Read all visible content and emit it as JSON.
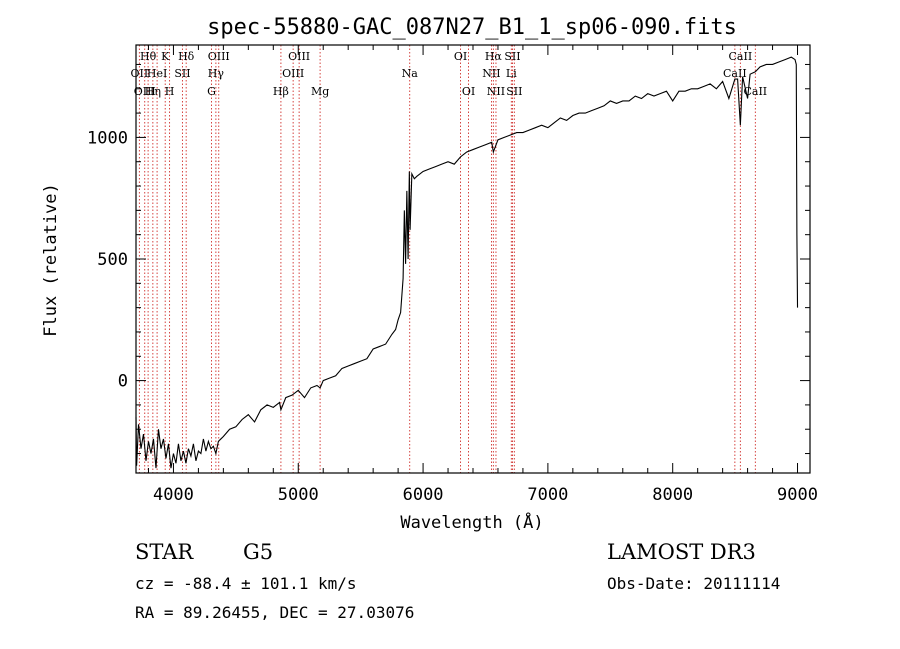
{
  "chart_data": {
    "type": "line",
    "title": "spec-55880-GAC_087N27_B1_1_sp06-090.fits",
    "xlabel": "Wavelength (Å)",
    "ylabel": "Flux (relative)",
    "xlim": [
      3700,
      9100
    ],
    "ylim": [
      -380,
      1380
    ],
    "xticks": [
      4000,
      5000,
      6000,
      7000,
      8000,
      9000
    ],
    "yticks": [
      0,
      500,
      1000
    ],
    "x_minor_step": 200,
    "y_minor_step": 100,
    "series": [
      {
        "name": "flux",
        "color": "#000000",
        "x": [
          3700,
          3705,
          3720,
          3740,
          3760,
          3780,
          3800,
          3820,
          3840,
          3860,
          3880,
          3900,
          3920,
          3940,
          3960,
          3980,
          4000,
          4020,
          4040,
          4060,
          4080,
          4100,
          4120,
          4140,
          4160,
          4180,
          4200,
          4220,
          4240,
          4260,
          4280,
          4300,
          4320,
          4340,
          4360,
          4380,
          4400,
          4450,
          4500,
          4550,
          4600,
          4650,
          4700,
          4750,
          4800,
          4850,
          4861,
          4900,
          4950,
          5000,
          5050,
          5100,
          5150,
          5175,
          5200,
          5250,
          5300,
          5350,
          5400,
          5450,
          5500,
          5550,
          5600,
          5650,
          5700,
          5750,
          5780,
          5800,
          5820,
          5840,
          5850,
          5860,
          5870,
          5880,
          5890,
          5896,
          5910,
          5930,
          5950,
          6000,
          6050,
          6100,
          6150,
          6200,
          6250,
          6300,
          6350,
          6400,
          6450,
          6500,
          6550,
          6563,
          6600,
          6650,
          6700,
          6750,
          6800,
          6850,
          6900,
          6950,
          7000,
          7050,
          7100,
          7150,
          7200,
          7250,
          7300,
          7350,
          7400,
          7450,
          7500,
          7550,
          7600,
          7650,
          7700,
          7750,
          7800,
          7850,
          7900,
          7950,
          8000,
          8050,
          8100,
          8150,
          8200,
          8250,
          8300,
          8350,
          8400,
          8450,
          8498,
          8520,
          8542,
          8560,
          8600,
          8620,
          8662,
          8700,
          8750,
          8800,
          8850,
          8900,
          8950,
          8980,
          8990,
          8995,
          9000
        ],
        "values": [
          -150,
          -350,
          -180,
          -280,
          -220,
          -330,
          -250,
          -300,
          -240,
          -360,
          -200,
          -280,
          -240,
          -320,
          -260,
          -360,
          -300,
          -340,
          -260,
          -330,
          -290,
          -340,
          -280,
          -310,
          -260,
          -330,
          -290,
          -300,
          -240,
          -290,
          -250,
          -280,
          -270,
          -300,
          -250,
          -240,
          -230,
          -200,
          -190,
          -160,
          -140,
          -170,
          -120,
          -100,
          -110,
          -90,
          -120,
          -70,
          -60,
          -40,
          -70,
          -30,
          -20,
          -30,
          0,
          10,
          20,
          50,
          60,
          70,
          80,
          90,
          130,
          140,
          150,
          190,
          210,
          250,
          280,
          420,
          700,
          480,
          780,
          500,
          860,
          620,
          850,
          830,
          840,
          860,
          870,
          880,
          890,
          900,
          890,
          920,
          940,
          950,
          960,
          970,
          980,
          940,
          990,
          1000,
          1010,
          1020,
          1020,
          1030,
          1040,
          1050,
          1040,
          1060,
          1080,
          1070,
          1090,
          1100,
          1100,
          1110,
          1120,
          1130,
          1150,
          1140,
          1150,
          1150,
          1170,
          1160,
          1180,
          1170,
          1180,
          1190,
          1150,
          1190,
          1190,
          1200,
          1200,
          1210,
          1220,
          1200,
          1230,
          1160,
          1240,
          1240,
          1050,
          1250,
          1160,
          1260,
          1270,
          1290,
          1300,
          1300,
          1310,
          1320,
          1330,
          1320,
          1300,
          600,
          300
        ]
      }
    ],
    "line_markers": [
      {
        "wave": 3727,
        "labels": [
          "OII"
        ],
        "row": 1
      },
      {
        "wave": 3770,
        "labels": [
          "OIII"
        ],
        "row": 2
      },
      {
        "wave": 3797,
        "labels": [
          "Hθ"
        ],
        "row": 0
      },
      {
        "wave": 3835,
        "labels": [
          "Hη"
        ],
        "row": 2
      },
      {
        "wave": 3869,
        "labels": [
          "HeI"
        ],
        "row": 1
      },
      {
        "wave": 3934,
        "labels": [
          "K"
        ],
        "row": 0
      },
      {
        "wave": 3969,
        "labels": [
          "H"
        ],
        "row": 2
      },
      {
        "wave": 4072,
        "labels": [
          "SII"
        ],
        "row": 1
      },
      {
        "wave": 4102,
        "labels": [
          "Hδ"
        ],
        "row": 0
      },
      {
        "wave": 4305,
        "labels": [
          "G"
        ],
        "row": 2
      },
      {
        "wave": 4340,
        "labels": [
          "Hγ"
        ],
        "row": 1
      },
      {
        "wave": 4363,
        "labels": [
          "OIII"
        ],
        "row": 0
      },
      {
        "wave": 4861,
        "labels": [
          "Hβ"
        ],
        "row": 2
      },
      {
        "wave": 4959,
        "labels": [
          "OIII"
        ],
        "row": 1
      },
      {
        "wave": 5007,
        "labels": [
          "OIII"
        ],
        "row": 0
      },
      {
        "wave": 5175,
        "labels": [
          "Mg"
        ],
        "row": 2
      },
      {
        "wave": 5893,
        "labels": [
          "Na"
        ],
        "row": 1
      },
      {
        "wave": 6300,
        "labels": [
          "OI"
        ],
        "row": 0
      },
      {
        "wave": 6364,
        "labels": [
          "OI"
        ],
        "row": 2
      },
      {
        "wave": 6548,
        "labels": [
          "NII"
        ],
        "row": 1
      },
      {
        "wave": 6563,
        "labels": [
          "Hα"
        ],
        "row": 0
      },
      {
        "wave": 6584,
        "labels": [
          "NII"
        ],
        "row": 2
      },
      {
        "wave": 6707,
        "labels": [
          "Li"
        ],
        "row": 1
      },
      {
        "wave": 6716,
        "labels": [
          "SII"
        ],
        "row": 0
      },
      {
        "wave": 6731,
        "labels": [
          "SII"
        ],
        "row": 2
      },
      {
        "wave": 8498,
        "labels": [
          "CaII"
        ],
        "row": 1
      },
      {
        "wave": 8542,
        "labels": [
          "CaII"
        ],
        "row": 0
      },
      {
        "wave": 8662,
        "labels": [
          "CaII"
        ],
        "row": 2
      }
    ],
    "marker_color": "#d0302c"
  },
  "info": {
    "class": "STAR",
    "subclass": "G5",
    "survey": "LAMOST DR3",
    "cz": "cz = -88.4 ± 101.1 km/s",
    "obs_date": "Obs-Date: 20111114",
    "radec": "RA =  89.26455, DEC =  27.03076"
  }
}
